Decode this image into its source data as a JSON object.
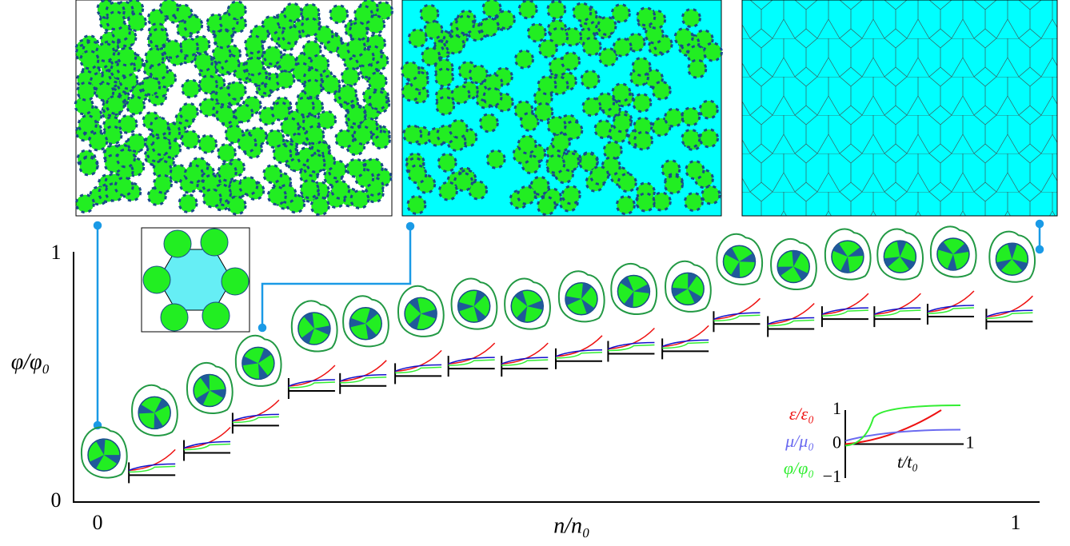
{
  "chart_data": {
    "type": "scatter",
    "xlabel": "n/n₀",
    "ylabel": "φ/φ₀",
    "x": [
      0.007,
      0.062,
      0.122,
      0.175,
      0.236,
      0.292,
      0.352,
      0.41,
      0.468,
      0.527,
      0.584,
      0.643,
      0.699,
      0.758,
      0.817,
      0.874,
      0.932,
      0.996
    ],
    "values": [
      0.19,
      0.36,
      0.45,
      0.56,
      0.7,
      0.72,
      0.76,
      0.79,
      0.79,
      0.82,
      0.85,
      0.86,
      0.97,
      0.95,
      0.99,
      0.99,
      1.0,
      0.98
    ],
    "xlim": [
      0,
      1
    ],
    "ylim": [
      0,
      1
    ],
    "xticks": [
      0,
      1
    ],
    "yticks": [
      0,
      1
    ],
    "color": "#22ee22",
    "inset": {
      "series": [
        {
          "name": "ε/ε₀",
          "color": "#ee1111"
        },
        {
          "name": "μ/μ₀",
          "color": "#6a6af0"
        },
        {
          "name": "φ/φ₀",
          "color": "#33ee33"
        }
      ],
      "xlabel": "t/t₀",
      "xlim": [
        0,
        1
      ],
      "ylim": [
        -1,
        1
      ],
      "xticks": [
        1
      ],
      "yticks": [
        1,
        0,
        {
          "value": -1,
          "label": "−1"
        }
      ]
    }
  }
}
